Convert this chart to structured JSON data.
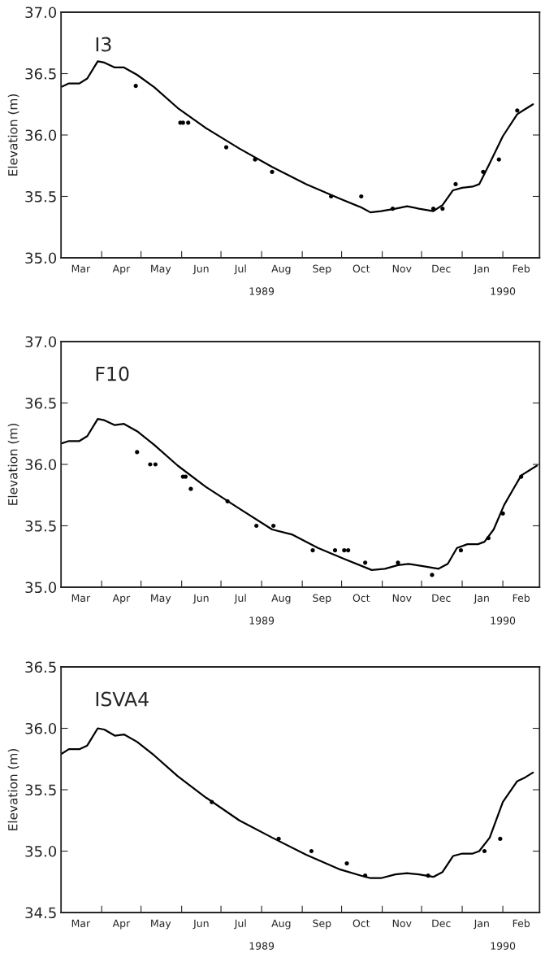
{
  "chart_data": [
    {
      "type": "line",
      "title": "I3",
      "ylabel": "Elevation (m)",
      "xlim": [
        "1989-03-01",
        "1990-03-01"
      ],
      "x2lim": [
        "1989-03-01",
        "1990-03-01"
      ],
      "x2ticks": [
        {
          "value": "1989-08-01",
          "label": "1989"
        },
        {
          "value": "1990-02-01",
          "label": "1990"
        }
      ],
      "ylim": [
        35.0,
        37.0
      ],
      "yticks": [
        {
          "value": 35.0,
          "label": "35.0"
        },
        35.5,
        {
          "value": 36.0,
          "label": "36.0"
        },
        36.5,
        {
          "value": 37.0,
          "label": "37.0"
        }
      ],
      "xticks": [
        {
          "value": "1989-03-16",
          "label": "Mar"
        },
        {
          "value": "1989-04-01",
          "label": null
        },
        {
          "value": "1989-04-16",
          "label": "Apr"
        },
        {
          "value": "1989-05-01",
          "label": null
        },
        {
          "value": "1989-05-16",
          "label": "May"
        },
        {
          "value": "1989-06-01",
          "label": null
        },
        {
          "value": "1989-06-16",
          "label": "Jun"
        },
        {
          "value": "1989-07-01",
          "label": null
        },
        {
          "value": "1989-07-16",
          "label": "Jul"
        },
        {
          "value": "1989-08-01",
          "label": null
        },
        {
          "value": "1989-08-16",
          "label": "Aug"
        },
        {
          "value": "1989-09-01",
          "label": null
        },
        {
          "value": "1989-09-16",
          "label": "Sep"
        },
        {
          "value": "1989-10-01",
          "label": null
        },
        {
          "value": "1989-10-16",
          "label": "Oct"
        },
        {
          "value": "1989-11-01",
          "label": null
        },
        {
          "value": "1989-11-16",
          "label": "Nov"
        },
        {
          "value": "1989-12-01",
          "label": null
        },
        {
          "value": "1989-12-16",
          "label": "Dec"
        },
        {
          "value": "1990-01-01",
          "label": null
        },
        {
          "value": "1990-01-16",
          "label": "Jan"
        },
        {
          "value": "1990-02-01",
          "label": null
        },
        {
          "value": "1990-02-15",
          "label": "Feb"
        }
      ],
      "series": [
        {
          "color": "#000000",
          "marker": "none",
          "line_style": "solid",
          "x": [
            "1989-03-01",
            "1989-03-07",
            "1989-03-15",
            "1989-03-21",
            "1989-03-29",
            "1989-04-03",
            "1989-04-11",
            "1989-04-18",
            "1989-04-28",
            "1989-05-11",
            "1989-05-29",
            "1989-06-19",
            "1989-07-15",
            "1989-08-09",
            "1989-09-04",
            "1989-09-30",
            "1989-10-16",
            "1989-10-23",
            "1989-10-31",
            "1989-11-11",
            "1989-11-20",
            "1989-11-29",
            "1989-12-10",
            "1989-12-17",
            "1989-12-25",
            "1990-01-01",
            "1990-01-09",
            "1990-01-14",
            "1990-01-22",
            "1990-02-01",
            "1990-02-12",
            "1990-02-18",
            "1990-02-24"
          ],
          "values": [
            36.39,
            36.42,
            36.42,
            36.46,
            36.6,
            36.59,
            36.55,
            36.55,
            36.49,
            36.39,
            36.22,
            36.06,
            35.89,
            35.74,
            35.6,
            35.48,
            35.41,
            35.37,
            35.38,
            35.4,
            35.42,
            35.4,
            35.38,
            35.43,
            35.55,
            35.57,
            35.58,
            35.6,
            35.77,
            35.99,
            36.17,
            36.21,
            36.25
          ]
        },
        {
          "type": "scatter",
          "color": "#000000",
          "marker": "circle",
          "x": [
            "1989-04-27",
            "1989-05-31",
            "1989-06-02",
            "1989-06-06",
            "1989-07-05",
            "1989-07-27",
            "1989-08-09",
            "1989-09-23",
            "1989-10-16",
            "1989-11-09",
            "1989-12-10",
            "1989-12-17",
            "1989-12-27",
            "1990-01-17",
            "1990-01-29",
            "1990-02-12"
          ],
          "values": [
            36.4,
            36.1,
            36.1,
            36.1,
            35.9,
            35.8,
            35.7,
            35.5,
            35.5,
            35.4,
            35.4,
            35.4,
            35.6,
            35.7,
            35.8,
            36.2
          ]
        }
      ]
    },
    {
      "type": "line",
      "title": "F10",
      "ylabel": "Elevation (m)",
      "xlim": [
        "1989-03-01",
        "1990-03-01"
      ],
      "x2lim": [
        "1989-03-01",
        "1990-03-01"
      ],
      "x2ticks": [
        {
          "value": "1989-08-01",
          "label": "1989"
        },
        {
          "value": "1990-02-01",
          "label": "1990"
        }
      ],
      "ylim": [
        35.0,
        37.0
      ],
      "yticks": [
        {
          "value": 35.0,
          "label": "35.0"
        },
        35.5,
        {
          "value": 36.0,
          "label": "36.0"
        },
        36.5,
        {
          "value": 37.0,
          "label": "37.0"
        }
      ],
      "xticks": [
        {
          "value": "1989-03-16",
          "label": "Mar"
        },
        {
          "value": "1989-04-01",
          "label": null
        },
        {
          "value": "1989-04-16",
          "label": "Apr"
        },
        {
          "value": "1989-05-01",
          "label": null
        },
        {
          "value": "1989-05-16",
          "label": "May"
        },
        {
          "value": "1989-06-01",
          "label": null
        },
        {
          "value": "1989-06-16",
          "label": "Jun"
        },
        {
          "value": "1989-07-01",
          "label": null
        },
        {
          "value": "1989-07-16",
          "label": "Jul"
        },
        {
          "value": "1989-08-01",
          "label": null
        },
        {
          "value": "1989-08-16",
          "label": "Aug"
        },
        {
          "value": "1989-09-01",
          "label": null
        },
        {
          "value": "1989-09-16",
          "label": "Sep"
        },
        {
          "value": "1989-10-01",
          "label": null
        },
        {
          "value": "1989-10-16",
          "label": "Oct"
        },
        {
          "value": "1989-11-01",
          "label": null
        },
        {
          "value": "1989-11-16",
          "label": "Nov"
        },
        {
          "value": "1989-12-01",
          "label": null
        },
        {
          "value": "1989-12-16",
          "label": "Dec"
        },
        {
          "value": "1990-01-01",
          "label": null
        },
        {
          "value": "1990-01-16",
          "label": "Jan"
        },
        {
          "value": "1990-02-01",
          "label": null
        },
        {
          "value": "1990-02-15",
          "label": "Feb"
        }
      ],
      "series": [
        {
          "color": "#000000",
          "marker": "none",
          "line_style": "solid",
          "x": [
            "1989-03-01",
            "1989-03-07",
            "1989-03-15",
            "1989-03-21",
            "1989-03-29",
            "1989-04-03",
            "1989-04-11",
            "1989-04-18",
            "1989-04-28",
            "1989-05-11",
            "1989-05-29",
            "1989-06-19",
            "1989-07-15",
            "1989-08-09",
            "1989-08-24",
            "1989-09-13",
            "1989-10-03",
            "1989-10-24",
            "1989-11-03",
            "1989-11-13",
            "1989-11-21",
            "1989-12-03",
            "1989-12-14",
            "1989-12-21",
            "1989-12-28",
            "1990-01-05",
            "1990-01-13",
            "1990-01-18",
            "1990-01-25",
            "1990-02-02",
            "1990-02-09",
            "1990-02-15",
            "1990-02-27"
          ],
          "values": [
            36.17,
            36.19,
            36.19,
            36.23,
            36.37,
            36.36,
            36.32,
            36.33,
            36.27,
            36.16,
            35.99,
            35.82,
            35.64,
            35.47,
            35.43,
            35.32,
            35.23,
            35.14,
            35.15,
            35.18,
            35.19,
            35.17,
            35.15,
            35.19,
            35.32,
            35.35,
            35.35,
            35.37,
            35.47,
            35.67,
            35.8,
            35.91,
            35.99
          ]
        },
        {
          "type": "scatter",
          "color": "#000000",
          "marker": "circle",
          "x": [
            "1989-04-28",
            "1989-05-08",
            "1989-05-12",
            "1989-06-02",
            "1989-06-04",
            "1989-06-08",
            "1989-07-06",
            "1989-07-28",
            "1989-08-10",
            "1989-09-09",
            "1989-09-26",
            "1989-10-03",
            "1989-10-06",
            "1989-10-19",
            "1989-11-13",
            "1989-12-09",
            "1989-12-31",
            "1990-01-21",
            "1990-02-01",
            "1990-02-15"
          ],
          "values": [
            36.1,
            36.0,
            36.0,
            35.9,
            35.9,
            35.8,
            35.7,
            35.5,
            35.5,
            35.3,
            35.3,
            35.3,
            35.3,
            35.2,
            35.2,
            35.1,
            35.3,
            35.4,
            35.6,
            35.9
          ]
        }
      ]
    },
    {
      "type": "line",
      "title": "ISVA4",
      "ylabel": "Elevation (m)",
      "xlim": [
        "1989-03-01",
        "1990-03-01"
      ],
      "x2lim": [
        "1989-03-01",
        "1990-03-01"
      ],
      "x2ticks": [
        {
          "value": "1989-08-01",
          "label": "1989"
        },
        {
          "value": "1990-02-01",
          "label": "1990"
        }
      ],
      "ylim": [
        34.5,
        36.5
      ],
      "yticks": [
        34.5,
        {
          "value": 35.0,
          "label": "35.0"
        },
        35.5,
        {
          "value": 36.0,
          "label": "36.0"
        },
        36.5
      ],
      "xticks": [
        {
          "value": "1989-03-16",
          "label": "Mar"
        },
        {
          "value": "1989-04-01",
          "label": null
        },
        {
          "value": "1989-04-16",
          "label": "Apr"
        },
        {
          "value": "1989-05-01",
          "label": null
        },
        {
          "value": "1989-05-16",
          "label": "May"
        },
        {
          "value": "1989-06-01",
          "label": null
        },
        {
          "value": "1989-06-16",
          "label": "Jun"
        },
        {
          "value": "1989-07-01",
          "label": null
        },
        {
          "value": "1989-07-16",
          "label": "Jul"
        },
        {
          "value": "1989-08-01",
          "label": null
        },
        {
          "value": "1989-08-16",
          "label": "Aug"
        },
        {
          "value": "1989-09-01",
          "label": null
        },
        {
          "value": "1989-09-16",
          "label": "Sep"
        },
        {
          "value": "1989-10-01",
          "label": null
        },
        {
          "value": "1989-10-16",
          "label": "Oct"
        },
        {
          "value": "1989-11-01",
          "label": null
        },
        {
          "value": "1989-11-16",
          "label": "Nov"
        },
        {
          "value": "1989-12-01",
          "label": null
        },
        {
          "value": "1989-12-16",
          "label": "Dec"
        },
        {
          "value": "1990-01-01",
          "label": null
        },
        {
          "value": "1990-01-16",
          "label": "Jan"
        },
        {
          "value": "1990-02-01",
          "label": null
        },
        {
          "value": "1990-02-15",
          "label": "Feb"
        }
      ],
      "series": [
        {
          "color": "#000000",
          "marker": "none",
          "line_style": "solid",
          "x": [
            "1989-03-01",
            "1989-03-07",
            "1989-03-15",
            "1989-03-21",
            "1989-03-29",
            "1989-04-03",
            "1989-04-11",
            "1989-04-18",
            "1989-04-28",
            "1989-05-11",
            "1989-05-29",
            "1989-06-19",
            "1989-07-15",
            "1989-08-09",
            "1989-09-04",
            "1989-09-30",
            "1989-10-16",
            "1989-10-23",
            "1989-10-31",
            "1989-11-11",
            "1989-11-20",
            "1989-11-29",
            "1989-12-10",
            "1989-12-17",
            "1989-12-25",
            "1990-01-01",
            "1990-01-09",
            "1990-01-14",
            "1990-01-22",
            "1990-02-01",
            "1990-02-12",
            "1990-02-18",
            "1990-02-24"
          ],
          "values": [
            35.79,
            35.83,
            35.83,
            35.86,
            36.0,
            35.99,
            35.94,
            35.95,
            35.89,
            35.78,
            35.61,
            35.44,
            35.25,
            35.11,
            34.97,
            34.85,
            34.8,
            34.78,
            34.78,
            34.81,
            34.82,
            34.81,
            34.79,
            34.83,
            34.96,
            34.98,
            34.98,
            35.0,
            35.11,
            35.4,
            35.57,
            35.6,
            35.64
          ]
        },
        {
          "type": "scatter",
          "color": "#000000",
          "marker": "circle",
          "x": [
            "1989-06-24",
            "1989-08-14",
            "1989-09-08",
            "1989-10-05",
            "1989-10-19",
            "1989-12-06",
            "1990-01-18",
            "1990-01-30"
          ],
          "values": [
            35.4,
            35.1,
            35.0,
            34.9,
            34.8,
            34.8,
            35.0,
            35.1
          ]
        }
      ]
    }
  ]
}
